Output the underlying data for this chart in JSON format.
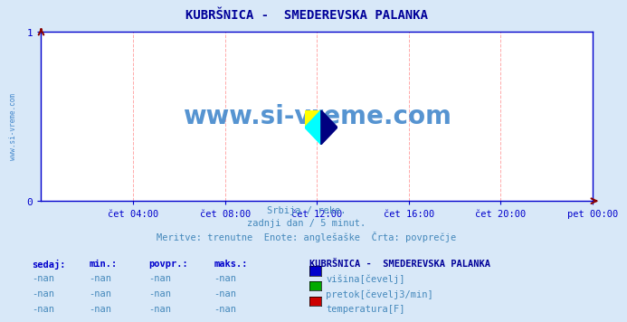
{
  "title": "KUBRŠNICA -  SMEDEREVSKA PALANKA",
  "title_color": "#000099",
  "bg_color": "#d8e8f8",
  "plot_bg_color": "#ffffff",
  "watermark_text": "www.si-vreme.com",
  "watermark_color": "#4488cc",
  "sidebar_text": "www.si-vreme.com",
  "sidebar_color": "#4488cc",
  "xticklabels": [
    "čet 04:00",
    "čet 08:00",
    "čet 12:00",
    "čet 16:00",
    "čet 20:00",
    "pet 00:00"
  ],
  "xtick_positions": [
    0.1667,
    0.3333,
    0.5,
    0.6667,
    0.8333,
    1.0
  ],
  "ylim": [
    0,
    1
  ],
  "xlim": [
    0,
    1
  ],
  "yticks": [
    0,
    1
  ],
  "grid_color": "#ffaaaa",
  "grid_linestyle": "--",
  "axis_color": "#0000cc",
  "arrow_color": "#880000",
  "subtitle_lines": [
    "Srbija / reke.",
    "zadnji dan / 5 minut.",
    "Meritve: trenutne  Enote: anglešaške  Črta: povprečje"
  ],
  "subtitle_color": "#4488bb",
  "legend_title": "KUBRŠNICA -  SMEDEREVSKA PALANKA",
  "legend_title_color": "#000099",
  "legend_items": [
    {
      "label": "višina[čevelj]",
      "color": "#0000cc"
    },
    {
      "label": "pretok[čevelj3/min]",
      "color": "#00aa00"
    },
    {
      "label": "temperatura[F]",
      "color": "#cc0000"
    }
  ],
  "table_headers": [
    "sedaj:",
    "min.:",
    "povpr.:",
    "maks.:"
  ],
  "table_values": [
    "-nan",
    "-nan",
    "-nan",
    "-nan"
  ],
  "table_header_color": "#0000cc",
  "table_value_color": "#4488bb"
}
